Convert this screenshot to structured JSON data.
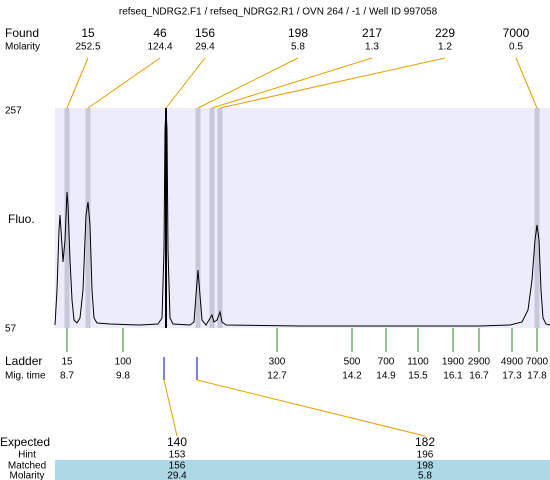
{
  "title": "refseq_NDRG2.F1 / refseq_NDRG2.R1 / OVN 264 / -1 / Well ID 997058",
  "found": {
    "label": "Found",
    "molarity_label": "Molarity",
    "sizes": [
      15,
      46,
      156,
      198,
      217,
      229,
      7000
    ],
    "molarity": [
      252.5,
      124.4,
      29.4,
      5.8,
      1.3,
      1.2,
      0.5
    ]
  },
  "axis": {
    "label": "Fluo.",
    "top": 257,
    "bottom": 57
  },
  "ladder": {
    "label": "Ladder",
    "time_label": "Mig. time",
    "sizes": [
      15,
      100,
      300,
      500,
      700,
      1100,
      1900,
      2900,
      4900,
      7000
    ],
    "times": [
      8.7,
      9.8,
      12.7,
      14.2,
      14.9,
      15.5,
      16.1,
      16.7,
      17.3,
      17.8
    ]
  },
  "expected": {
    "label": "Expected",
    "hint_label": "Hint",
    "matched_label": "Matched",
    "molarity_label": "Molarity",
    "columns": [
      {
        "expected": 140,
        "hint": 153,
        "matched": 156,
        "molarity": 29.4
      },
      {
        "expected": 182,
        "hint": 196,
        "matched": 198,
        "molarity": 5.8
      }
    ]
  }
}
